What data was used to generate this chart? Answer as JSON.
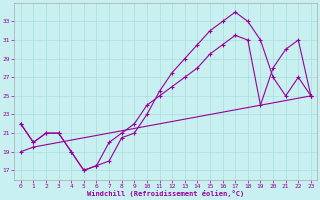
{
  "xlabel": "Windchill (Refroidissement éolien,°C)",
  "ylabel": "",
  "bg_color": "#c8f0f0",
  "line_color": "#990099",
  "grid_color": "#aadddd",
  "text_color": "#990099",
  "xlim": [
    -0.5,
    23.5
  ],
  "ylim": [
    16,
    35
  ],
  "xticks": [
    0,
    1,
    2,
    3,
    4,
    5,
    6,
    7,
    8,
    9,
    10,
    11,
    12,
    13,
    14,
    15,
    16,
    17,
    18,
    19,
    20,
    21,
    22,
    23
  ],
  "yticks": [
    17,
    19,
    21,
    23,
    25,
    27,
    29,
    31,
    33
  ],
  "line1_x": [
    0,
    1,
    2,
    3,
    4,
    5,
    6,
    7,
    8,
    9,
    10,
    11,
    12,
    13,
    14,
    15,
    16,
    17,
    18,
    19,
    20,
    21,
    22,
    23
  ],
  "line1_y": [
    22,
    20,
    21,
    21,
    19,
    17,
    17.5,
    18,
    20.5,
    21,
    23,
    25.5,
    27.5,
    29,
    30.5,
    32,
    33,
    34,
    33,
    31,
    27,
    25,
    27,
    25
  ],
  "line2_x": [
    0,
    1,
    2,
    3,
    4,
    5,
    6,
    7,
    8,
    9,
    10,
    11,
    12,
    13,
    14,
    15,
    16,
    17,
    18,
    19,
    20,
    21,
    22,
    23
  ],
  "line2_y": [
    22,
    20,
    21,
    21,
    19,
    17,
    17.5,
    20,
    21,
    22,
    24,
    25,
    26,
    27,
    28,
    29.5,
    30.5,
    31.5,
    31,
    24,
    28,
    30,
    31,
    25
  ],
  "line3_x": [
    0,
    1,
    23
  ],
  "line3_y": [
    19,
    19.5,
    25
  ],
  "figsize": [
    3.2,
    2.0
  ],
  "dpi": 100
}
